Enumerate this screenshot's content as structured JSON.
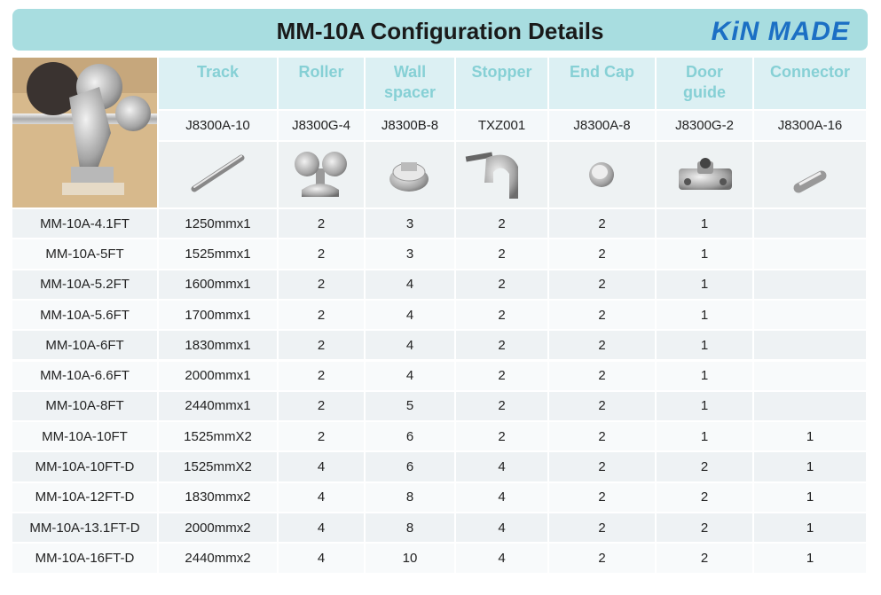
{
  "header": {
    "title": "MM-10A Configuration Details",
    "logo": "KiN MADE"
  },
  "table": {
    "columns": [
      "Track",
      "Roller",
      "Wall spacer",
      "Stopper",
      "End Cap",
      "Door guide",
      "Connector"
    ],
    "codes": [
      "J8300A-10",
      "J8300G-4",
      "J8300B-8",
      "TXZ001",
      "J8300A-8",
      "J8300G-2",
      "J8300A-16"
    ],
    "rows": [
      [
        "MM-10A-4.1FT",
        "1250mmx1",
        2,
        3,
        2,
        2,
        1,
        null
      ],
      [
        "MM-10A-5FT",
        "1525mmx1",
        2,
        3,
        2,
        2,
        1,
        null
      ],
      [
        "MM-10A-5.2FT",
        "1600mmx1",
        2,
        4,
        2,
        2,
        1,
        null
      ],
      [
        "MM-10A-5.6FT",
        "1700mmx1",
        2,
        4,
        2,
        2,
        1,
        null
      ],
      [
        "MM-10A-6FT",
        "1830mmx1",
        2,
        4,
        2,
        2,
        1,
        null
      ],
      [
        "MM-10A-6.6FT",
        "2000mmx1",
        2,
        4,
        2,
        2,
        1,
        null
      ],
      [
        "MM-10A-8FT",
        "2440mmx1",
        2,
        5,
        2,
        2,
        1,
        null
      ],
      [
        "MM-10A-10FT",
        "1525mmX2",
        2,
        6,
        2,
        2,
        1,
        1
      ],
      [
        "MM-10A-10FT-D",
        "1525mmX2",
        4,
        6,
        4,
        2,
        2,
        1
      ],
      [
        "MM-10A-12FT-D",
        "1830mmx2",
        4,
        8,
        4,
        2,
        2,
        1
      ],
      [
        "MM-10A-13.1FT-D",
        "2000mmx2",
        4,
        8,
        4,
        2,
        2,
        1
      ],
      [
        "MM-10A-16FT-D",
        "2440mmx2",
        4,
        10,
        4,
        2,
        2,
        1
      ]
    ]
  }
}
